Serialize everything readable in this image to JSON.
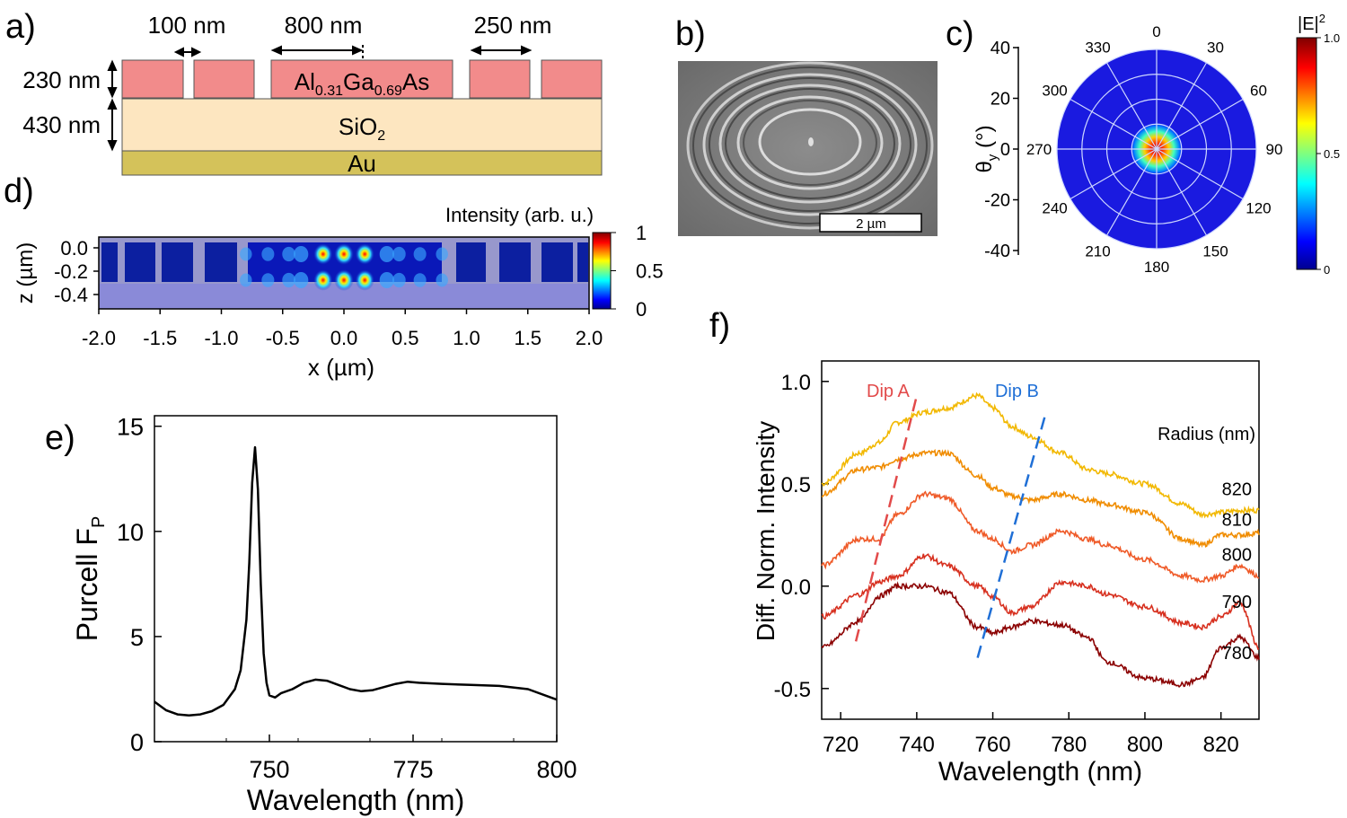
{
  "panels": {
    "a": {
      "label": "a)",
      "dims": {
        "gap": "100 nm",
        "ring": "800 nm",
        "period": "250 nm",
        "layer1": "230 nm",
        "layer2": "430 nm"
      },
      "layers": {
        "algaas_base": "Al",
        "algaas_sub1": "0.31",
        "algaas_mid": "Ga",
        "algaas_sub2": "0.69",
        "algaas_end": "As",
        "sio2_base": "SiO",
        "sio2_sub": "2",
        "au": "Au"
      },
      "colors": {
        "algaas": "#f28b8b",
        "sio2": "#fde6c0",
        "au": "#d4c25a"
      }
    },
    "b": {
      "label": "b)",
      "scalebar": "2 µm"
    },
    "c": {
      "label": "c)",
      "ylabel_theta": "θ",
      "ylabel_sub": "y",
      "ylabel_unit": " (°)",
      "yticks": [
        "40",
        "20",
        "0",
        "-20",
        "-40"
      ],
      "angles": [
        "0",
        "30",
        "60",
        "90",
        "120",
        "150",
        "180",
        "210",
        "240",
        "270",
        "300",
        "330"
      ],
      "colorbar_title": "|E|",
      "colorbar_sup": "2",
      "colorbar_ticks": [
        "1.0",
        "0.5",
        "0"
      ]
    },
    "d": {
      "label": "d)",
      "colorbar_title": "Intensity (arb. u.)",
      "colorbar_ticks": [
        "1",
        "0.5",
        "0"
      ],
      "yticks": [
        "0.0",
        "-0.2",
        "-0.4"
      ],
      "xticks": [
        "-2.0",
        "-1.5",
        "-1.0",
        "-0.5",
        "0.0",
        "0.5",
        "1.0",
        "1.5",
        "2.0"
      ],
      "xlabel": "x (µm)",
      "ylabel": "z (µm)"
    },
    "e": {
      "label": "e)"
    },
    "f": {
      "label": "f)"
    }
  },
  "chart_data": [
    {
      "id": "e",
      "type": "line",
      "xlabel": "Wavelength (nm)",
      "ylabel": "Purcell F",
      "ylabel_sub": "P",
      "xlim": [
        730,
        800
      ],
      "ylim": [
        0,
        15.5
      ],
      "xticks": [
        750,
        775,
        800
      ],
      "yticks": [
        0,
        5,
        10,
        15
      ],
      "x": [
        730,
        732,
        734,
        736,
        738,
        740,
        742,
        744,
        745,
        746,
        746.5,
        747,
        747.5,
        748,
        748.5,
        749,
        749.5,
        750,
        751,
        752,
        754,
        756,
        758,
        760,
        762,
        764,
        766,
        768,
        770,
        772,
        774,
        776,
        780,
        785,
        790,
        795,
        800
      ],
      "y": [
        1.9,
        1.5,
        1.3,
        1.25,
        1.3,
        1.45,
        1.75,
        2.5,
        3.4,
        5.8,
        8.5,
        12.3,
        14.0,
        12.0,
        7.5,
        4.2,
        2.8,
        2.2,
        2.1,
        2.3,
        2.5,
        2.8,
        2.95,
        2.9,
        2.7,
        2.5,
        2.4,
        2.45,
        2.6,
        2.75,
        2.85,
        2.8,
        2.75,
        2.7,
        2.65,
        2.5,
        2.0
      ],
      "color": "#000000"
    },
    {
      "id": "f",
      "type": "line",
      "xlabel": "Wavelength (nm)",
      "ylabel": "Diff. Norm. Intensity",
      "xlim": [
        715,
        830
      ],
      "ylim": [
        -0.65,
        1.1
      ],
      "xticks": [
        720,
        740,
        760,
        780,
        800,
        820
      ],
      "ytick_values": [
        1.0,
        0.5,
        0.0,
        -0.5
      ],
      "ytick_labels": [
        "1.0",
        "0.5",
        "0.0",
        "-0.5"
      ],
      "legend_title": "Radius (nm)",
      "x": [
        715,
        725,
        730,
        735,
        742,
        748,
        756,
        760,
        765,
        770,
        778,
        785,
        790,
        800,
        810,
        815,
        820,
        825,
        830
      ],
      "series": [
        {
          "name": "820",
          "color": "#f2b800",
          "offset": 0.35,
          "values": [
            0.15,
            0.3,
            0.35,
            0.45,
            0.5,
            0.52,
            0.58,
            0.52,
            0.43,
            0.38,
            0.3,
            0.22,
            0.2,
            0.15,
            0.05,
            0.0,
            0.01,
            0.02,
            0.02
          ]
        },
        {
          "name": "810",
          "color": "#f08c00",
          "offset": 0.2,
          "values": [
            0.25,
            0.37,
            0.38,
            0.42,
            0.45,
            0.45,
            0.34,
            0.28,
            0.24,
            0.22,
            0.25,
            0.22,
            0.2,
            0.16,
            0.03,
            0.0,
            0.05,
            0.05,
            0.06
          ]
        },
        {
          "name": "800",
          "color": "#ef5a28",
          "offset": 0.05,
          "values": [
            0.05,
            0.18,
            0.18,
            0.3,
            0.4,
            0.38,
            0.22,
            0.18,
            0.12,
            0.15,
            0.22,
            0.18,
            0.15,
            0.08,
            0.0,
            -0.02,
            0.0,
            0.05,
            0.0
          ]
        },
        {
          "name": "790",
          "color": "#d7301f",
          "offset": -0.1,
          "values": [
            -0.05,
            0.06,
            0.12,
            0.15,
            0.25,
            0.2,
            0.1,
            0.05,
            -0.03,
            0.0,
            0.12,
            0.1,
            0.06,
            0.0,
            -0.08,
            -0.1,
            -0.05,
            0.02,
            -0.2
          ]
        },
        {
          "name": "780",
          "color": "#8b0000",
          "offset": -0.25,
          "values": [
            -0.05,
            0.08,
            0.2,
            0.25,
            0.25,
            0.22,
            0.05,
            0.02,
            0.05,
            0.08,
            0.06,
            0.0,
            -0.12,
            -0.2,
            -0.23,
            -0.2,
            -0.05,
            0.0,
            -0.1
          ]
        }
      ],
      "annotations": [
        {
          "label": "Dip A",
          "color": "#e24a4a",
          "x1": 724,
          "y1": -0.27,
          "x2": 740,
          "y2": 0.93
        },
        {
          "label": "Dip B",
          "color": "#1f6fd6",
          "x1": 756,
          "y1": -0.35,
          "x2": 774,
          "y2": 0.85
        }
      ]
    }
  ]
}
